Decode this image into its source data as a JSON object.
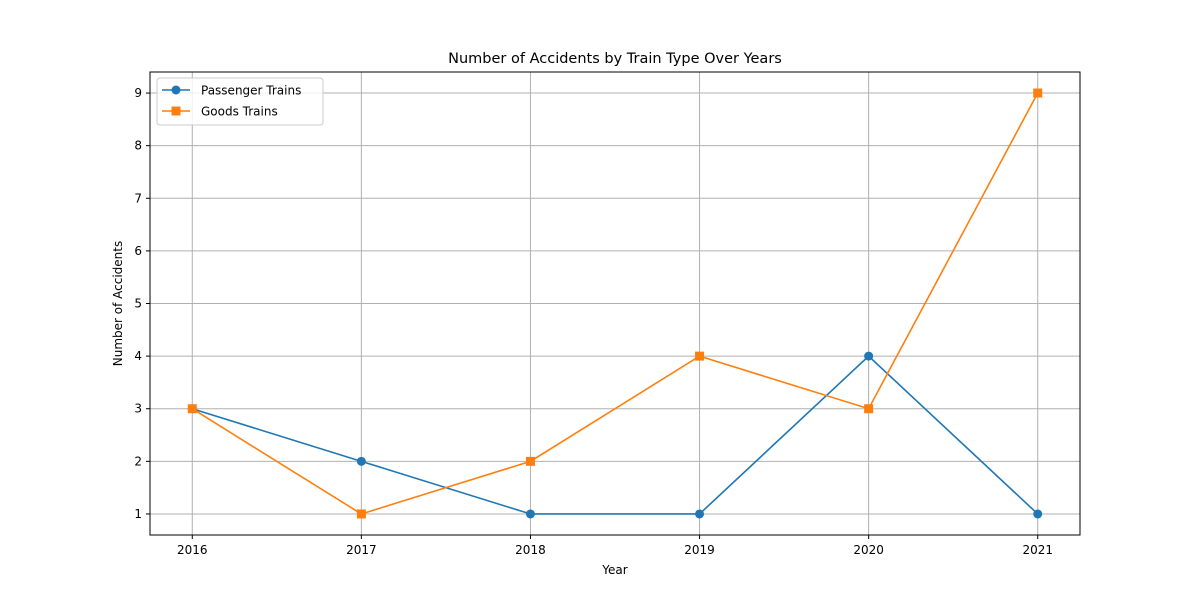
{
  "chart_data": {
    "type": "line",
    "title": "Number of Accidents by Train Type Over Years",
    "xlabel": "Year",
    "ylabel": "Number of Accidents",
    "x": [
      2016,
      2017,
      2018,
      2019,
      2020,
      2021
    ],
    "xticks": [
      "2016",
      "2017",
      "2018",
      "2019",
      "2020",
      "2021"
    ],
    "xlim": [
      2015.75,
      2021.25
    ],
    "ylim": [
      0.6,
      9.4
    ],
    "yticks": [
      "1",
      "2",
      "3",
      "4",
      "5",
      "6",
      "7",
      "8",
      "9"
    ],
    "grid": true,
    "legend_position": "upper-left",
    "series": [
      {
        "name": "Passenger Trains",
        "values": [
          3,
          2,
          1,
          1,
          4,
          1
        ],
        "color": "#1f77b4",
        "marker": "circle"
      },
      {
        "name": "Goods Trains",
        "values": [
          3,
          1,
          2,
          4,
          3,
          9
        ],
        "color": "#ff7f0e",
        "marker": "square"
      }
    ]
  }
}
